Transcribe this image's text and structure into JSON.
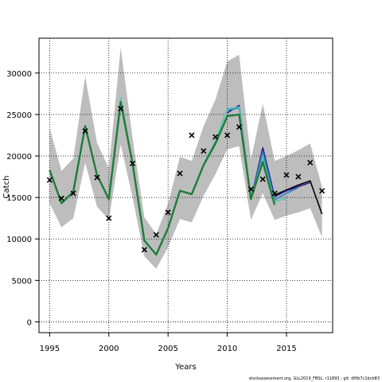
{
  "chart_data": {
    "type": "line",
    "xlabel": "Years",
    "ylabel": "Catch",
    "xlim": [
      1994.1,
      2018.9
    ],
    "ylim": [
      -1300,
      34200
    ],
    "xticks": [
      1995,
      2000,
      2005,
      2010,
      2015
    ],
    "yticks": [
      0,
      5000,
      10000,
      15000,
      20000,
      25000,
      30000
    ],
    "grid": true,
    "band": {
      "x": [
        1995,
        1996,
        1997,
        1998,
        1999,
        2000,
        2001,
        2002,
        2003,
        2004,
        2005,
        2006,
        2007,
        2008,
        2009,
        2010,
        2011,
        2012,
        2013,
        2014,
        2015,
        2016,
        2017,
        2018
      ],
      "lower": [
        14300,
        11400,
        12500,
        19200,
        13900,
        12300,
        21400,
        15000,
        7900,
        6400,
        9000,
        12400,
        12000,
        15200,
        17800,
        20800,
        21200,
        12300,
        15500,
        12300,
        12800,
        13200,
        13700,
        10200
      ],
      "upper": [
        23400,
        18200,
        19700,
        29600,
        21600,
        18500,
        33100,
        22200,
        12600,
        10600,
        14200,
        19900,
        19400,
        23600,
        26800,
        31400,
        32200,
        19600,
        26300,
        19400,
        20000,
        20700,
        21500,
        16300
      ]
    },
    "series": [
      {
        "color": "#000000",
        "x": [
          2014,
          2015,
          2016,
          2017,
          2018
        ],
        "values": [
          15300,
          15900,
          16500,
          17000,
          13000
        ]
      },
      {
        "color": "#2c1f8c",
        "x": [
          2010,
          2011,
          2012,
          2013,
          2014,
          2015,
          2016,
          2017
        ],
        "values": [
          25200,
          26100,
          14800,
          21000,
          15100,
          15800,
          16300,
          16800
        ]
      },
      {
        "color": "#2f7fc1",
        "x": [
          2010,
          2011,
          2012,
          2013,
          2014,
          2015,
          2016
        ],
        "values": [
          25500,
          25800,
          14800,
          20500,
          14700,
          15500,
          16200
        ]
      },
      {
        "color": "#4fc9b0",
        "x": [
          2000,
          2001,
          2002,
          2003,
          2004,
          2005,
          2006,
          2007,
          2008,
          2009,
          2010,
          2011,
          2012,
          2013,
          2014,
          2015
        ],
        "values": [
          14900,
          27000,
          19100,
          9900,
          8100,
          11300,
          15800,
          15400,
          19000,
          21800,
          25700,
          25900,
          14800,
          19800,
          14500,
          14900
        ]
      },
      {
        "color": "#1e7b3a",
        "x": [
          1995,
          1996,
          1997,
          1998,
          1999,
          2000,
          2001,
          2002,
          2003,
          2004,
          2005,
          2006,
          2007,
          2008,
          2009,
          2010,
          2011,
          2012,
          2013,
          2014
        ],
        "values": [
          18300,
          14300,
          15700,
          23600,
          17700,
          14800,
          26500,
          19100,
          9800,
          8100,
          11300,
          15800,
          15400,
          18900,
          21500,
          24800,
          25000,
          14800,
          19300,
          14100
        ]
      }
    ],
    "points": {
      "marker": "x",
      "x": [
        1995,
        1996,
        1997,
        1998,
        1999,
        2000,
        2001,
        2002,
        2003,
        2004,
        2005,
        2006,
        2007,
        2008,
        2009,
        2010,
        2011,
        2012,
        2013,
        2014,
        2015,
        2016,
        2017,
        2018
      ],
      "values": [
        17100,
        14900,
        15500,
        23000,
        17400,
        12500,
        25700,
        19100,
        8700,
        10500,
        13200,
        17900,
        22500,
        20600,
        22300,
        22500,
        23500,
        16000,
        17200,
        15500,
        17700,
        17500,
        19200,
        15800
      ]
    }
  },
  "footer": "stockassessment.org, GLL2019_FBSL, r11893 ; git: df0b7c1bcb83"
}
